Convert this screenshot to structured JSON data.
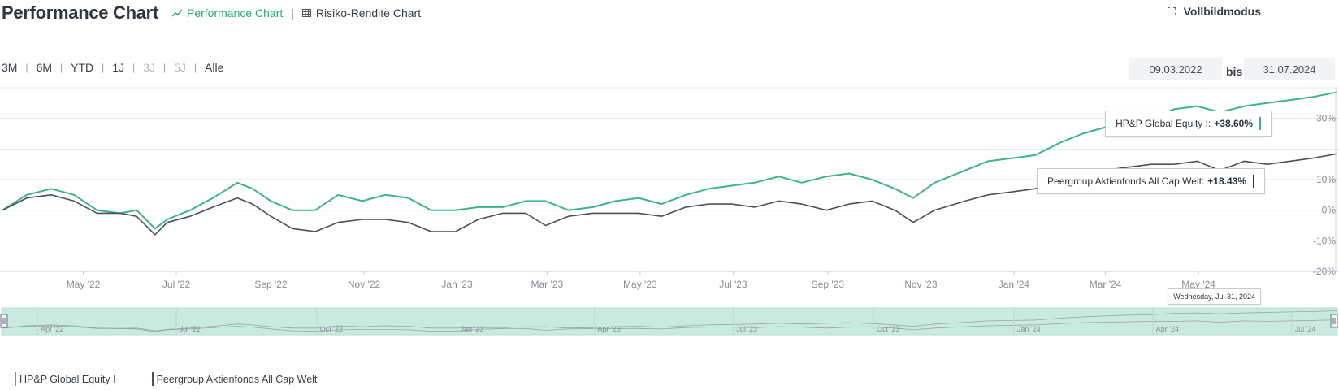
{
  "header": {
    "title": "Performance Chart",
    "tabs": [
      {
        "label": "Performance Chart",
        "icon": "line-chart-icon",
        "active": true
      },
      {
        "label": "Risiko-Rendite Chart",
        "icon": "grid-icon",
        "active": false
      }
    ],
    "fullscreen_label": "Vollbildmodus"
  },
  "range_buttons": [
    {
      "label": "3M",
      "enabled": true
    },
    {
      "label": "6M",
      "enabled": true
    },
    {
      "label": "YTD",
      "enabled": true
    },
    {
      "label": "1J",
      "enabled": true
    },
    {
      "label": "3J",
      "enabled": false
    },
    {
      "label": "5J",
      "enabled": false
    },
    {
      "label": "Alle",
      "enabled": true
    }
  ],
  "date_range": {
    "from": "09.03.2022",
    "sep": "bis",
    "to": "31.07.2024"
  },
  "tooltips": {
    "series_a": {
      "label": "HP&P Global Equity I:",
      "value": "+38.60%"
    },
    "series_b": {
      "label": "Peergroup Aktienfonds All Cap Welt:",
      "value": "+18.43%"
    },
    "x": "Wednesday, Jul 31, 2024"
  },
  "navigator_labels": [
    "Apr '22",
    "Jul '22",
    "Oct '22",
    "Jan '23",
    "Apr '23",
    "Jul '23",
    "Oct '23",
    "Jan '24",
    "Apr '24",
    "Jul '24"
  ],
  "colors": {
    "series_a": "#3db48d",
    "series_b": "#4d4f5e",
    "navigator_fill": "#c9ebdf"
  },
  "chart_data": {
    "type": "line",
    "x_ticks": [
      "May '22",
      "Jul '22",
      "Sep '22",
      "Nov '22",
      "Jan '23",
      "Mar '23",
      "May '23",
      "Jul '23",
      "Sep '23",
      "Nov '23",
      "Jan '24",
      "Mar '24",
      "May '24"
    ],
    "y_ticks": [
      "-20%",
      "-10%",
      "0%",
      "10%",
      "30%"
    ],
    "ylim": [
      -20,
      40
    ],
    "x": [
      "2022-03-09",
      "2022-03-25",
      "2022-04-10",
      "2022-04-25",
      "2022-05-10",
      "2022-05-25",
      "2022-06-05",
      "2022-06-17",
      "2022-06-25",
      "2022-07-10",
      "2022-07-25",
      "2022-08-10",
      "2022-08-20",
      "2022-09-01",
      "2022-09-15",
      "2022-09-30",
      "2022-10-15",
      "2022-10-31",
      "2022-11-15",
      "2022-11-30",
      "2022-12-15",
      "2022-12-31",
      "2023-01-15",
      "2023-01-31",
      "2023-02-15",
      "2023-02-28",
      "2023-03-15",
      "2023-03-31",
      "2023-04-15",
      "2023-04-30",
      "2023-05-15",
      "2023-05-31",
      "2023-06-15",
      "2023-06-30",
      "2023-07-15",
      "2023-07-31",
      "2023-08-15",
      "2023-08-31",
      "2023-09-15",
      "2023-09-30",
      "2023-10-15",
      "2023-10-27",
      "2023-11-10",
      "2023-11-30",
      "2023-12-15",
      "2023-12-31",
      "2024-01-15",
      "2024-01-31",
      "2024-02-15",
      "2024-02-29",
      "2024-03-15",
      "2024-03-31",
      "2024-04-15",
      "2024-04-30",
      "2024-05-15",
      "2024-05-31",
      "2024-06-15",
      "2024-06-30",
      "2024-07-15",
      "2024-07-31"
    ],
    "series": [
      {
        "name": "HP&P Global Equity I",
        "values": [
          0,
          5,
          7,
          5,
          0,
          -1,
          0,
          -6,
          -3,
          0,
          4,
          9,
          7,
          3,
          0,
          0,
          5,
          3,
          5,
          4,
          0,
          0,
          1,
          1,
          3,
          3,
          0,
          1,
          3,
          4,
          2,
          5,
          7,
          8,
          9,
          11,
          9,
          11,
          12,
          10,
          7,
          4,
          9,
          13,
          16,
          17,
          18,
          22,
          25,
          27,
          29,
          30,
          33,
          34,
          32,
          34,
          35,
          36,
          37,
          38.6
        ]
      },
      {
        "name": "Peergroup Aktienfonds All Cap Welt",
        "values": [
          0,
          4,
          5,
          3,
          -1,
          -1,
          -2,
          -8,
          -4,
          -2,
          1,
          4,
          2,
          -2,
          -6,
          -7,
          -4,
          -3,
          -3,
          -4,
          -7,
          -7,
          -3,
          -1,
          -1,
          -5,
          -2,
          -1,
          -1,
          -1,
          -2,
          1,
          2,
          2,
          1,
          3,
          2,
          0,
          2,
          3,
          0,
          -4,
          0,
          3,
          5,
          6,
          7,
          10,
          12,
          13,
          14,
          15,
          15,
          16,
          13,
          16,
          15,
          16,
          17,
          18.43
        ]
      }
    ]
  }
}
